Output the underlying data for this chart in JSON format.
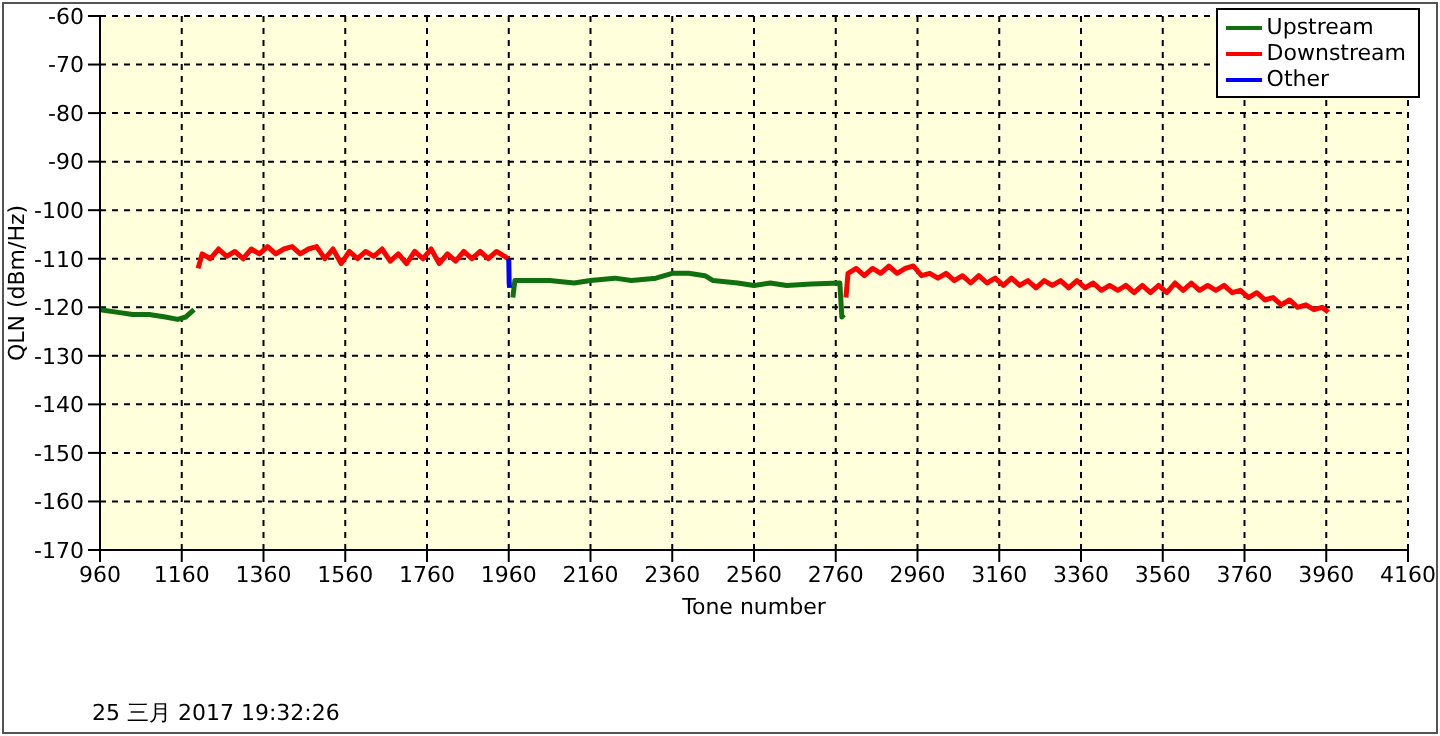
{
  "chart_data": {
    "type": "line",
    "xlabel": "Tone number",
    "ylabel": "QLN (dBm/Hz)",
    "annotations": [
      "25 三月 2017 19:32:26"
    ],
    "xlim": [
      960,
      4160
    ],
    "xticks": [
      960,
      1160,
      1360,
      1560,
      1760,
      1960,
      2160,
      2360,
      2560,
      2760,
      2960,
      3160,
      3360,
      3560,
      3760,
      3960,
      4160
    ],
    "ylim": [
      -170,
      -60
    ],
    "yticks": [
      -170,
      -160,
      -150,
      -140,
      -130,
      -120,
      -110,
      -100,
      -90,
      -80,
      -70,
      -60
    ],
    "grid": true,
    "legend": "top right",
    "marker": "none",
    "line_style": "solid",
    "series": [
      {
        "name": "Upstream",
        "color": "#107010",
        "x": [
          960,
          1000,
          1040,
          1080,
          1120,
          1150,
          1170,
          1190,
          1580,
          1970,
          1975,
          2000,
          2060,
          2120,
          2160,
          2220,
          2260,
          2320,
          2360,
          2400,
          2440,
          2460,
          2520,
          2560,
          2600,
          2640,
          2700,
          2770,
          2775,
          2780
        ],
        "values": [
          -120.5,
          -121,
          -121.5,
          -121.5,
          -122,
          -122.5,
          -122,
          -120.5,
          null,
          -118,
          -114.5,
          -114.5,
          -114.5,
          -115,
          -114.5,
          -114,
          -114.5,
          -114,
          -113,
          -113,
          -113.5,
          -114.5,
          -115,
          -115.5,
          -115,
          -115.5,
          -115.2,
          -115,
          -122,
          -121.5
        ]
      },
      {
        "name": "Downstream",
        "color": "#ff0000",
        "x": [
          1200,
          1210,
          1230,
          1250,
          1270,
          1290,
          1310,
          1330,
          1350,
          1370,
          1390,
          1410,
          1430,
          1450,
          1470,
          1490,
          1510,
          1530,
          1550,
          1570,
          1590,
          1610,
          1630,
          1650,
          1670,
          1690,
          1710,
          1730,
          1750,
          1770,
          1790,
          1810,
          1830,
          1850,
          1870,
          1890,
          1910,
          1930,
          1950,
          1958,
          2370,
          2785,
          2790,
          2810,
          2830,
          2850,
          2870,
          2890,
          2910,
          2930,
          2950,
          2970,
          2990,
          3010,
          3030,
          3050,
          3070,
          3090,
          3110,
          3130,
          3150,
          3170,
          3190,
          3210,
          3230,
          3250,
          3270,
          3290,
          3310,
          3330,
          3350,
          3370,
          3390,
          3410,
          3430,
          3450,
          3470,
          3490,
          3510,
          3530,
          3550,
          3570,
          3590,
          3610,
          3630,
          3650,
          3670,
          3690,
          3710,
          3730,
          3750,
          3770,
          3790,
          3810,
          3830,
          3850,
          3870,
          3890,
          3910,
          3930,
          3950,
          3965
        ],
        "values": [
          -112,
          -109,
          -110,
          -108,
          -109.5,
          -108.5,
          -110,
          -108,
          -109,
          -107.5,
          -109,
          -108,
          -107.5,
          -109,
          -108,
          -107.5,
          -110,
          -108,
          -111,
          -108.5,
          -110,
          -108.5,
          -109.5,
          -108,
          -110.5,
          -109,
          -111,
          -108.5,
          -110,
          -108,
          -111,
          -109,
          -110.5,
          -108.5,
          -110,
          -108.5,
          -110,
          -108.5,
          -109.5,
          -110,
          null,
          -118,
          -113,
          -112,
          -113.5,
          -112,
          -113,
          -111.5,
          -113,
          -112,
          -111.5,
          -113.5,
          -113,
          -114,
          -113,
          -114.5,
          -113.5,
          -115,
          -113.5,
          -115,
          -114,
          -115.5,
          -114,
          -115.5,
          -114.5,
          -116,
          -114.5,
          -115.5,
          -114.5,
          -116,
          -114.5,
          -116,
          -115,
          -116.5,
          -115.5,
          -116.5,
          -115.5,
          -117,
          -115.5,
          -117,
          -115.5,
          -117,
          -115,
          -116.5,
          -115,
          -116.5,
          -115.5,
          -116.5,
          -115.5,
          -117,
          -116.5,
          -118,
          -117,
          -118.5,
          -118,
          -119.5,
          -118.5,
          -120,
          -119.5,
          -120.5,
          -120,
          -121
        ]
      },
      {
        "name": "Other",
        "color": "#0000ff",
        "x": [
          1960,
          1961,
          1962
        ],
        "values": [
          -110,
          -115,
          -116
        ]
      }
    ]
  }
}
